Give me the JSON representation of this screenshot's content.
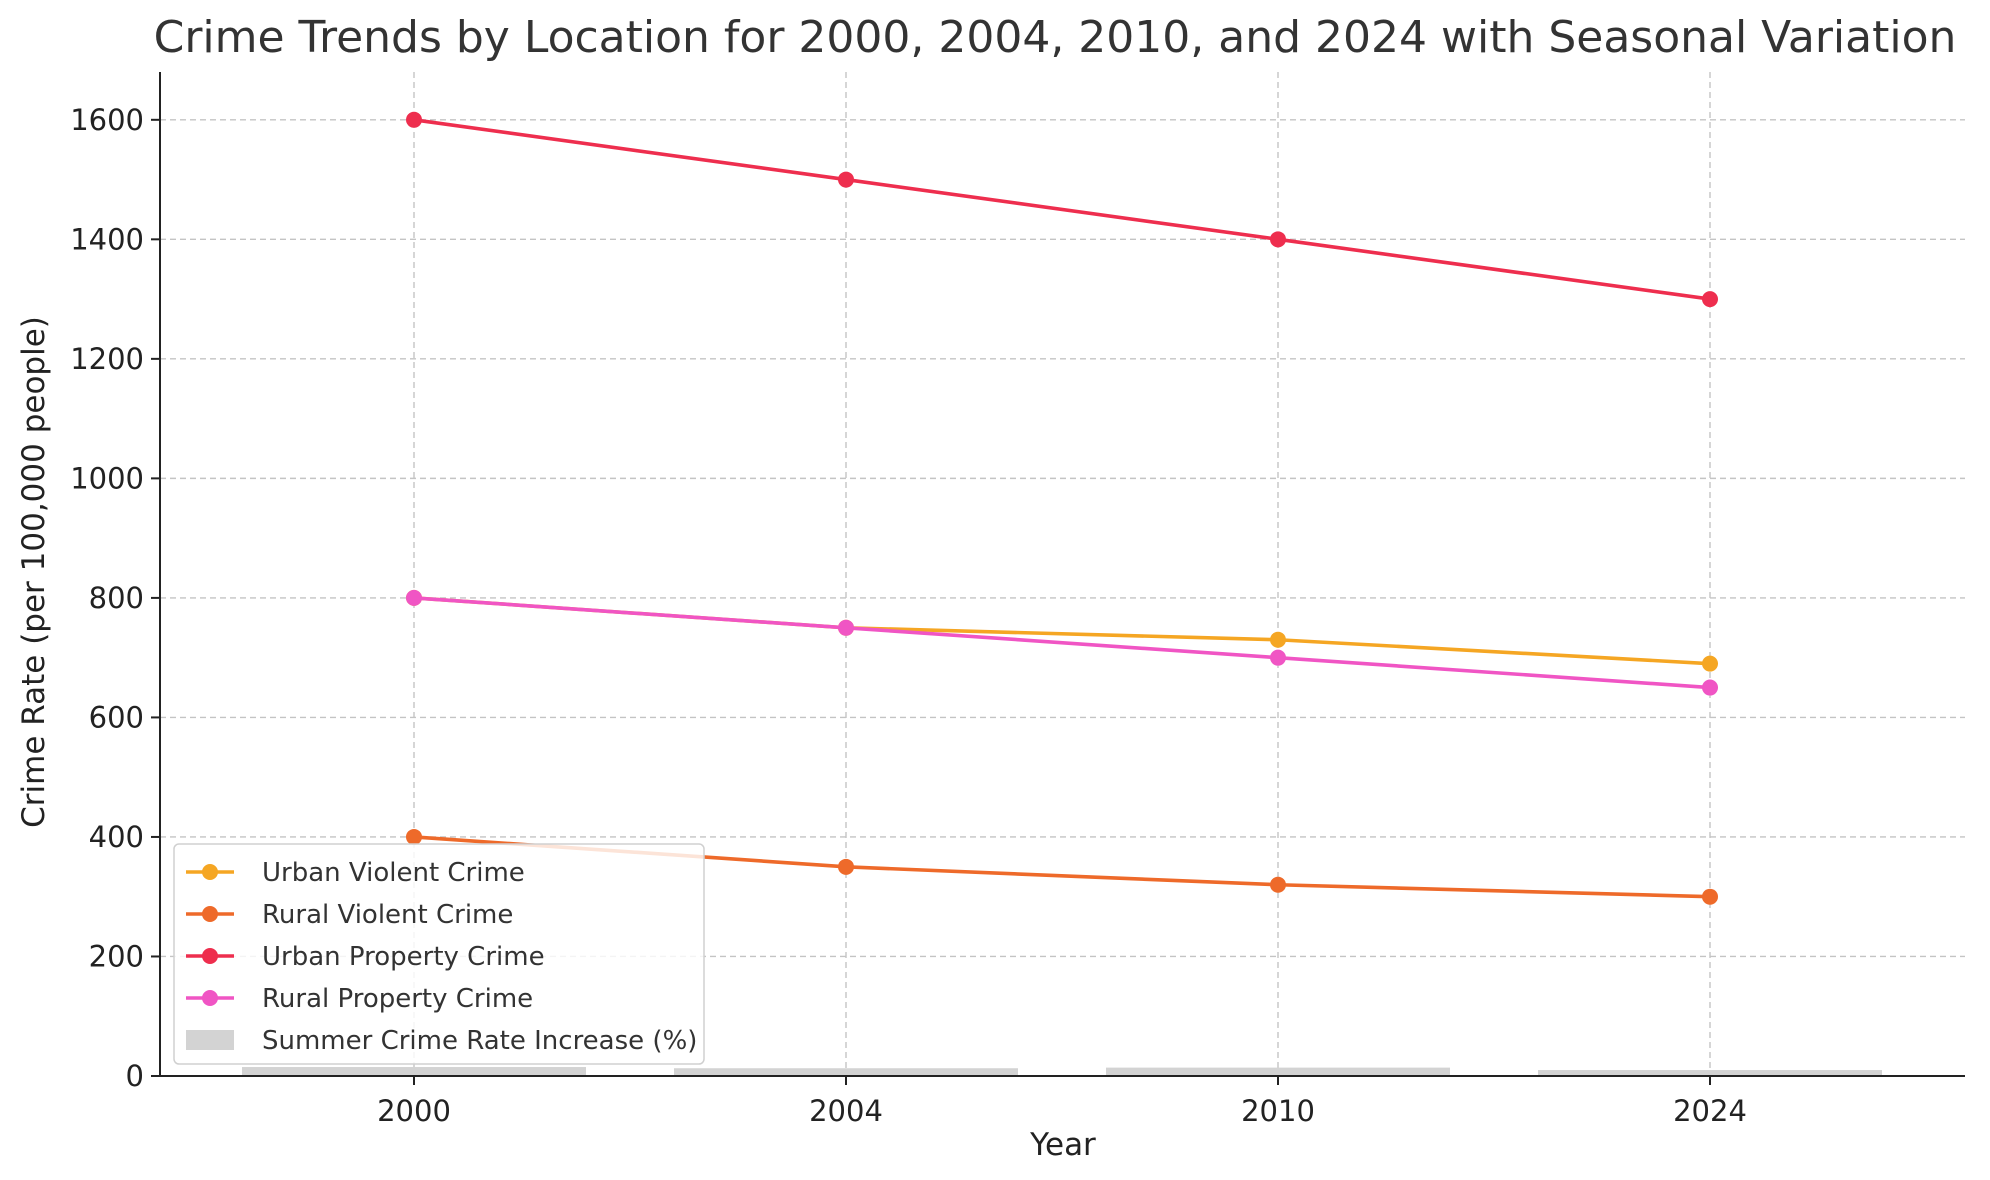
{
  "chart_data": {
    "type": "line",
    "title": "Crime Trends by Location for 2000, 2004, 2010, and 2024 with Seasonal Variation",
    "xlabel": "Year",
    "ylabel": "Crime Rate (per 100,000 people)",
    "categories": [
      "2000",
      "2004",
      "2010",
      "2024"
    ],
    "ylim": [
      0,
      1680
    ],
    "yticks": [
      0,
      200,
      400,
      600,
      800,
      1000,
      1200,
      1400,
      1600
    ],
    "grid": true,
    "legend_position": "bottom-left",
    "series": [
      {
        "name": "Urban Violent Crime",
        "type": "line",
        "color": "#f5a623",
        "values": [
          800,
          750,
          730,
          690
        ]
      },
      {
        "name": "Rural Violent Crime",
        "type": "line",
        "color": "#ee6a2a",
        "values": [
          400,
          350,
          320,
          300
        ]
      },
      {
        "name": "Urban Property Crime",
        "type": "line",
        "color": "#ee2e4e",
        "values": [
          1600,
          1500,
          1400,
          1300
        ]
      },
      {
        "name": "Rural Property Crime",
        "type": "line",
        "color": "#f055c4",
        "values": [
          800,
          750,
          700,
          650
        ]
      },
      {
        "name": "Summer Crime Rate Increase (%)",
        "type": "bar",
        "color": "#d3d3d3",
        "values": [
          15,
          13,
          14,
          10
        ]
      }
    ]
  }
}
